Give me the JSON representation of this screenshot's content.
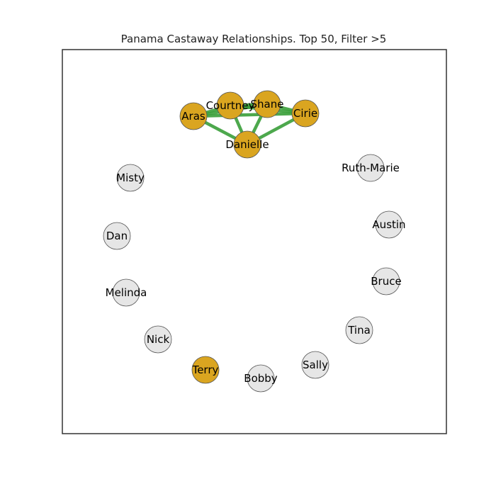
{
  "title": "Panama Castaway Relationships. Top 50, Filter >5",
  "colors": {
    "highlight_node": "#DAA520",
    "normal_node": "#e6e6e6",
    "edge": "#3a9e3a",
    "frame": "#333333",
    "node_stroke": "#555555"
  },
  "nodes": [
    {
      "id": "aras",
      "label": "Aras",
      "highlight": true
    },
    {
      "id": "courtney",
      "label": "Courtney",
      "highlight": true
    },
    {
      "id": "shane",
      "label": "Shane",
      "highlight": true
    },
    {
      "id": "cirie",
      "label": "Cirie",
      "highlight": true
    },
    {
      "id": "danielle",
      "label": "Danielle",
      "highlight": true
    },
    {
      "id": "ruth-marie",
      "label": "Ruth-Marie",
      "highlight": false
    },
    {
      "id": "austin",
      "label": "Austin",
      "highlight": false
    },
    {
      "id": "bruce",
      "label": "Bruce",
      "highlight": false
    },
    {
      "id": "tina",
      "label": "Tina",
      "highlight": false
    },
    {
      "id": "sally",
      "label": "Sally",
      "highlight": false
    },
    {
      "id": "bobby",
      "label": "Bobby",
      "highlight": false
    },
    {
      "id": "terry",
      "label": "Terry",
      "highlight": true
    },
    {
      "id": "nick",
      "label": "Nick",
      "highlight": false
    },
    {
      "id": "melinda",
      "label": "Melinda",
      "highlight": false
    },
    {
      "id": "dan",
      "label": "Dan",
      "highlight": false
    },
    {
      "id": "misty",
      "label": "Misty",
      "highlight": false
    }
  ],
  "edges": [
    [
      "aras",
      "courtney"
    ],
    [
      "aras",
      "shane"
    ],
    [
      "aras",
      "cirie"
    ],
    [
      "aras",
      "danielle"
    ],
    [
      "courtney",
      "shane"
    ],
    [
      "courtney",
      "cirie"
    ],
    [
      "courtney",
      "danielle"
    ],
    [
      "shane",
      "cirie"
    ],
    [
      "shane",
      "danielle"
    ],
    [
      "cirie",
      "danielle"
    ]
  ]
}
